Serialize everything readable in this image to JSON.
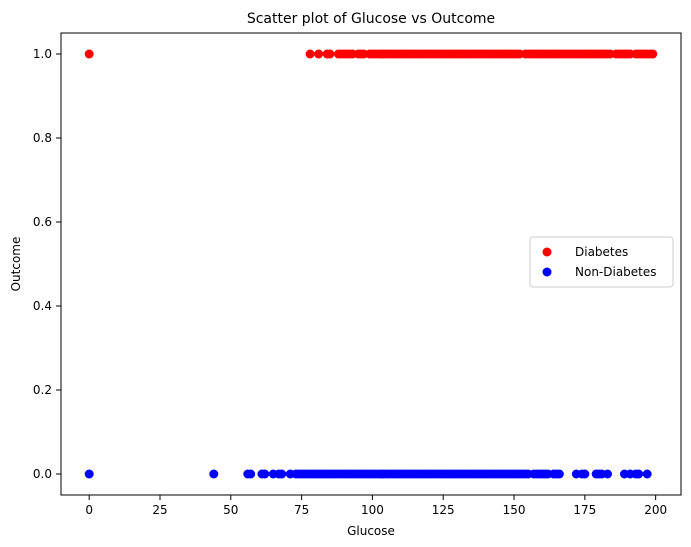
{
  "chart_data": {
    "type": "scatter",
    "title": "Scatter plot of Glucose vs Outcome",
    "xlabel": "Glucose",
    "ylabel": "Outcome",
    "xlim": [
      -9.95,
      208.95
    ],
    "ylim": [
      -0.05,
      1.05
    ],
    "xticks": [
      0,
      25,
      50,
      75,
      100,
      125,
      150,
      175,
      200
    ],
    "yticks": [
      0.0,
      0.2,
      0.4,
      0.6,
      0.8,
      1.0
    ],
    "xtick_labels": [
      "0",
      "25",
      "50",
      "75",
      "100",
      "125",
      "150",
      "175",
      "200"
    ],
    "ytick_labels": [
      "0.0",
      "0.2",
      "0.4",
      "0.6",
      "0.8",
      "1.0"
    ],
    "grid": false,
    "legend_position": "center-right",
    "series": [
      {
        "name": "Diabetes",
        "color": "#ff0000",
        "y": 1.0,
        "x": [
          0,
          78,
          81,
          84,
          85,
          88,
          89,
          90,
          91,
          92,
          93,
          95,
          96,
          97,
          99,
          100,
          101,
          102,
          103,
          104,
          105,
          106,
          107,
          108,
          109,
          110,
          111,
          112,
          113,
          114,
          115,
          116,
          117,
          118,
          119,
          120,
          121,
          122,
          123,
          124,
          125,
          126,
          127,
          128,
          129,
          130,
          131,
          132,
          133,
          134,
          135,
          136,
          137,
          138,
          139,
          140,
          141,
          142,
          143,
          144,
          145,
          146,
          147,
          148,
          149,
          150,
          151,
          152,
          154,
          155,
          156,
          157,
          158,
          159,
          160,
          161,
          162,
          163,
          164,
          165,
          166,
          167,
          168,
          169,
          170,
          171,
          172,
          173,
          174,
          175,
          176,
          177,
          178,
          179,
          180,
          181,
          182,
          183,
          184,
          186,
          187,
          188,
          189,
          190,
          191,
          193,
          194,
          195,
          196,
          197,
          198,
          199
        ]
      },
      {
        "name": "Non-Diabetes",
        "color": "#0000ff",
        "y": 0.0,
        "x": [
          0,
          44,
          56,
          57,
          61,
          62,
          65,
          67,
          68,
          71,
          73,
          74,
          75,
          76,
          77,
          78,
          79,
          80,
          81,
          82,
          83,
          84,
          85,
          86,
          87,
          88,
          89,
          90,
          91,
          92,
          93,
          94,
          95,
          96,
          97,
          98,
          99,
          100,
          101,
          102,
          103,
          104,
          105,
          106,
          107,
          108,
          109,
          110,
          111,
          112,
          113,
          114,
          115,
          116,
          117,
          118,
          119,
          120,
          121,
          122,
          123,
          124,
          125,
          126,
          127,
          128,
          129,
          130,
          131,
          132,
          133,
          134,
          135,
          136,
          137,
          138,
          139,
          140,
          141,
          142,
          143,
          144,
          145,
          146,
          147,
          148,
          149,
          150,
          151,
          152,
          153,
          154,
          155,
          157,
          158,
          159,
          160,
          161,
          162,
          164,
          165,
          166,
          172,
          174,
          175,
          179,
          180,
          181,
          183,
          189,
          191,
          193,
          194,
          197
        ]
      }
    ]
  }
}
